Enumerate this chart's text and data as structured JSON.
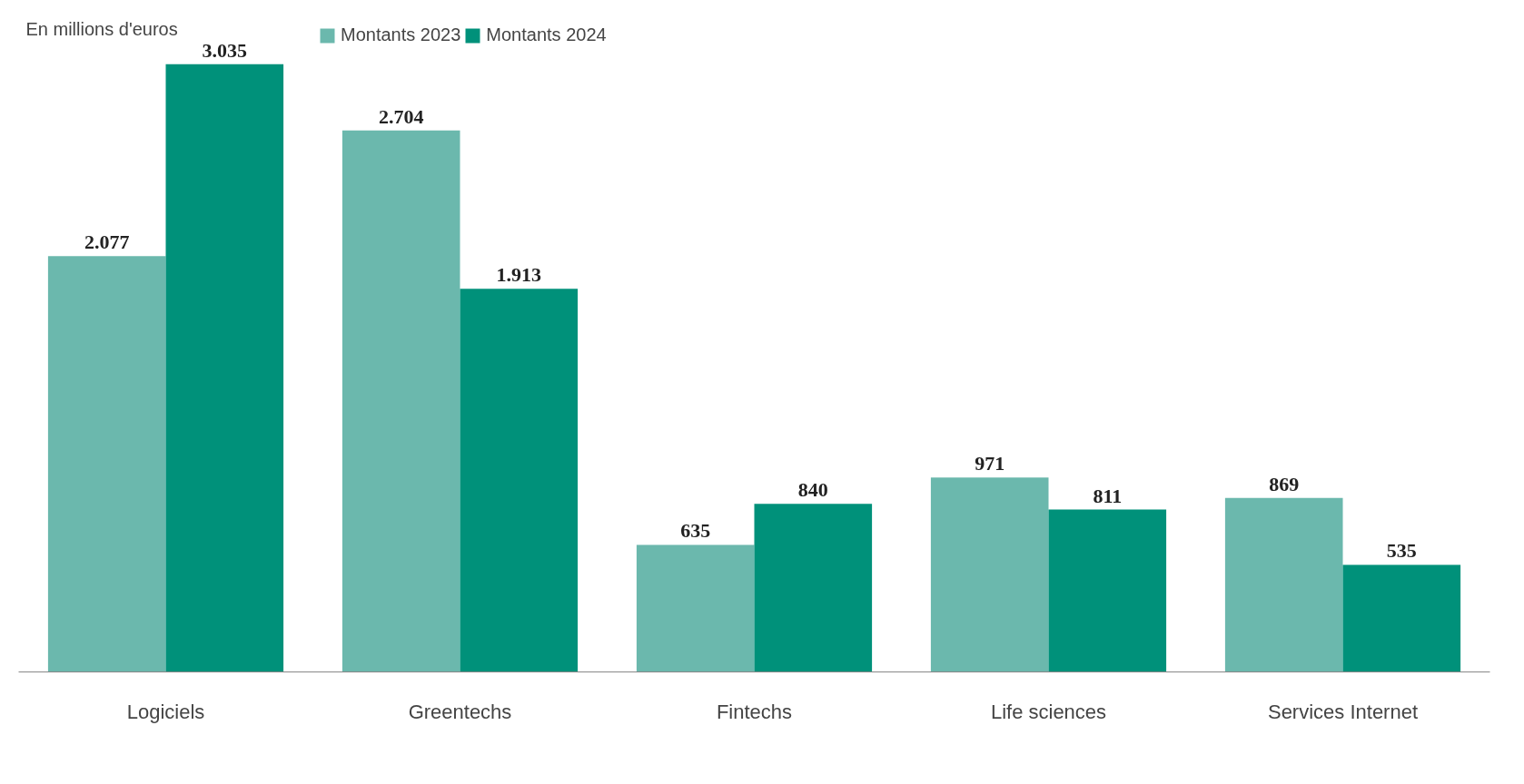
{
  "chart_data": {
    "type": "bar",
    "categories": [
      "Logiciels",
      "Greentechs",
      "Fintechs",
      "Life sciences",
      "Services Internet"
    ],
    "series": [
      {
        "name": "Montants 2023",
        "color": "#6bb8ad",
        "values": [
          2077,
          2704,
          635,
          971,
          869
        ],
        "value_labels": [
          "2.077",
          "2.704",
          "635",
          "971",
          "869"
        ]
      },
      {
        "name": "Montants 2024",
        "color": "#00917a",
        "values": [
          3035,
          1913,
          840,
          811,
          535
        ],
        "value_labels": [
          "3.035",
          "1.913",
          "840",
          "811",
          "535"
        ]
      }
    ],
    "annotations": [
      "En millions d'euros"
    ],
    "legend": "top left",
    "grid": false,
    "tick_labels": "x"
  }
}
